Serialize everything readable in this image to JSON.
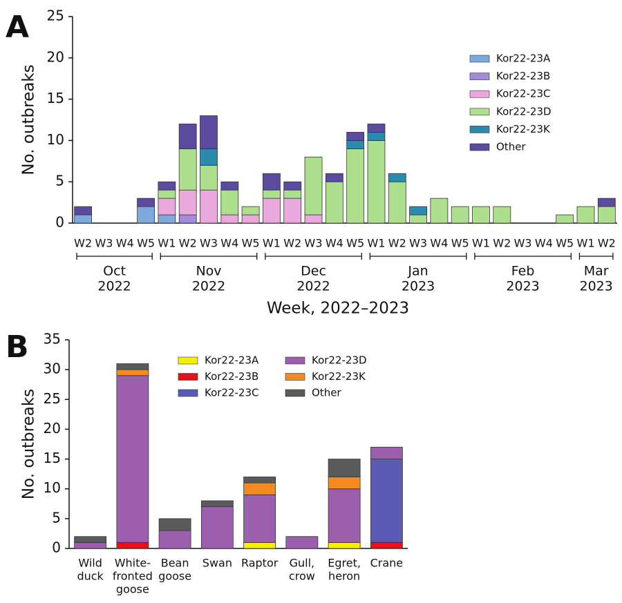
{
  "chart_data": [
    {
      "type": "bar",
      "stacked": true,
      "panel_label": "A",
      "ylabel": "No. outbreaks",
      "xlabel": "Week, 2022–2023",
      "categories": [
        "W2",
        "W3",
        "W4",
        "W5",
        "W1",
        "W2",
        "W3",
        "W4",
        "W5",
        "W1",
        "W2",
        "W3",
        "W4",
        "W5",
        "W1",
        "W2",
        "W3",
        "W4",
        "W5",
        "W1",
        "W2",
        "W3",
        "W4",
        "W5",
        "W1",
        "W2"
      ],
      "months": [
        [
          "Oct",
          "2022"
        ],
        [
          "Nov",
          "2022"
        ],
        [
          "Dec",
          "2022"
        ],
        [
          "Jan",
          "2023"
        ],
        [
          "Feb",
          "2023"
        ],
        [
          "Mar",
          "2023"
        ]
      ],
      "ylim": [
        0,
        25
      ],
      "yticks": [
        0,
        5,
        10,
        15,
        20,
        25
      ],
      "series": [
        {
          "name": "Kor22-23A",
          "color": "#7fa8dc",
          "values": [
            1,
            0,
            0,
            2,
            1,
            0,
            0,
            0,
            0,
            0,
            0,
            0,
            0,
            0,
            0,
            0,
            0,
            0,
            0,
            0,
            0,
            0,
            0,
            0,
            0,
            0
          ]
        },
        {
          "name": "Kor22-23B",
          "color": "#a58ad6",
          "values": [
            0,
            0,
            0,
            0,
            0,
            1,
            0,
            0,
            0,
            0,
            0,
            0,
            0,
            0,
            0,
            0,
            0,
            0,
            0,
            0,
            0,
            0,
            0,
            0,
            0,
            0
          ]
        },
        {
          "name": "Kor22-23C",
          "color": "#eaa9dc",
          "values": [
            0,
            0,
            0,
            0,
            2,
            3,
            4,
            1,
            1,
            3,
            3,
            1,
            0,
            0,
            0,
            0,
            0,
            0,
            0,
            0,
            0,
            0,
            0,
            0,
            0,
            0
          ]
        },
        {
          "name": "Kor22-23D",
          "color": "#addf8e",
          "values": [
            0,
            0,
            0,
            0,
            1,
            5,
            3,
            3,
            1,
            1,
            1,
            7,
            5,
            9,
            10,
            5,
            1,
            3,
            2,
            2,
            2,
            0,
            0,
            1,
            2,
            2
          ]
        },
        {
          "name": "Kor22-23K",
          "color": "#2b8aae",
          "values": [
            0,
            0,
            0,
            0,
            0,
            0,
            2,
            0,
            0,
            0,
            0,
            0,
            0,
            1,
            1,
            1,
            1,
            0,
            0,
            0,
            0,
            0,
            0,
            0,
            0,
            0
          ]
        },
        {
          "name": "Other",
          "color": "#5b4a9e",
          "values": [
            1,
            0,
            0,
            1,
            1,
            3,
            4,
            1,
            0,
            2,
            1,
            0,
            1,
            1,
            1,
            0,
            0,
            0,
            0,
            0,
            0,
            0,
            0,
            0,
            0,
            1
          ]
        }
      ]
    },
    {
      "type": "bar",
      "stacked": true,
      "panel_label": "B",
      "ylabel": "No. outbreaks",
      "categories": [
        [
          "Wild",
          "duck"
        ],
        [
          "White-",
          "fronted",
          "goose"
        ],
        [
          "Bean",
          "goose"
        ],
        [
          "Swan"
        ],
        [
          "Raptor"
        ],
        [
          "Gull,",
          "crow"
        ],
        [
          "Egret,",
          "heron"
        ],
        [
          "Crane"
        ]
      ],
      "ylim": [
        0,
        35
      ],
      "yticks": [
        0,
        5,
        10,
        15,
        20,
        25,
        30,
        35
      ],
      "series": [
        {
          "name": "Kor22-23A",
          "color": "#f5ef00",
          "values": [
            0,
            0,
            0,
            0,
            1,
            0,
            1,
            0
          ]
        },
        {
          "name": "Kor22-23B",
          "color": "#e8101a",
          "values": [
            0,
            1,
            0,
            0,
            0,
            0,
            0,
            1
          ]
        },
        {
          "name": "Kor22-23C",
          "color": "#5a5ab2",
          "values": [
            0,
            0,
            0,
            0,
            0,
            0,
            0,
            14
          ]
        },
        {
          "name": "Kor22-23D",
          "color": "#9c5fae",
          "values": [
            1,
            28,
            3,
            7,
            8,
            2,
            9,
            2
          ]
        },
        {
          "name": "Kor22-23K",
          "color": "#f58a20",
          "values": [
            0,
            1,
            0,
            0,
            2,
            0,
            2,
            0
          ]
        },
        {
          "name": "Other",
          "color": "#5a5a5a",
          "values": [
            1,
            1,
            2,
            1,
            1,
            0,
            3,
            0
          ]
        }
      ]
    }
  ]
}
